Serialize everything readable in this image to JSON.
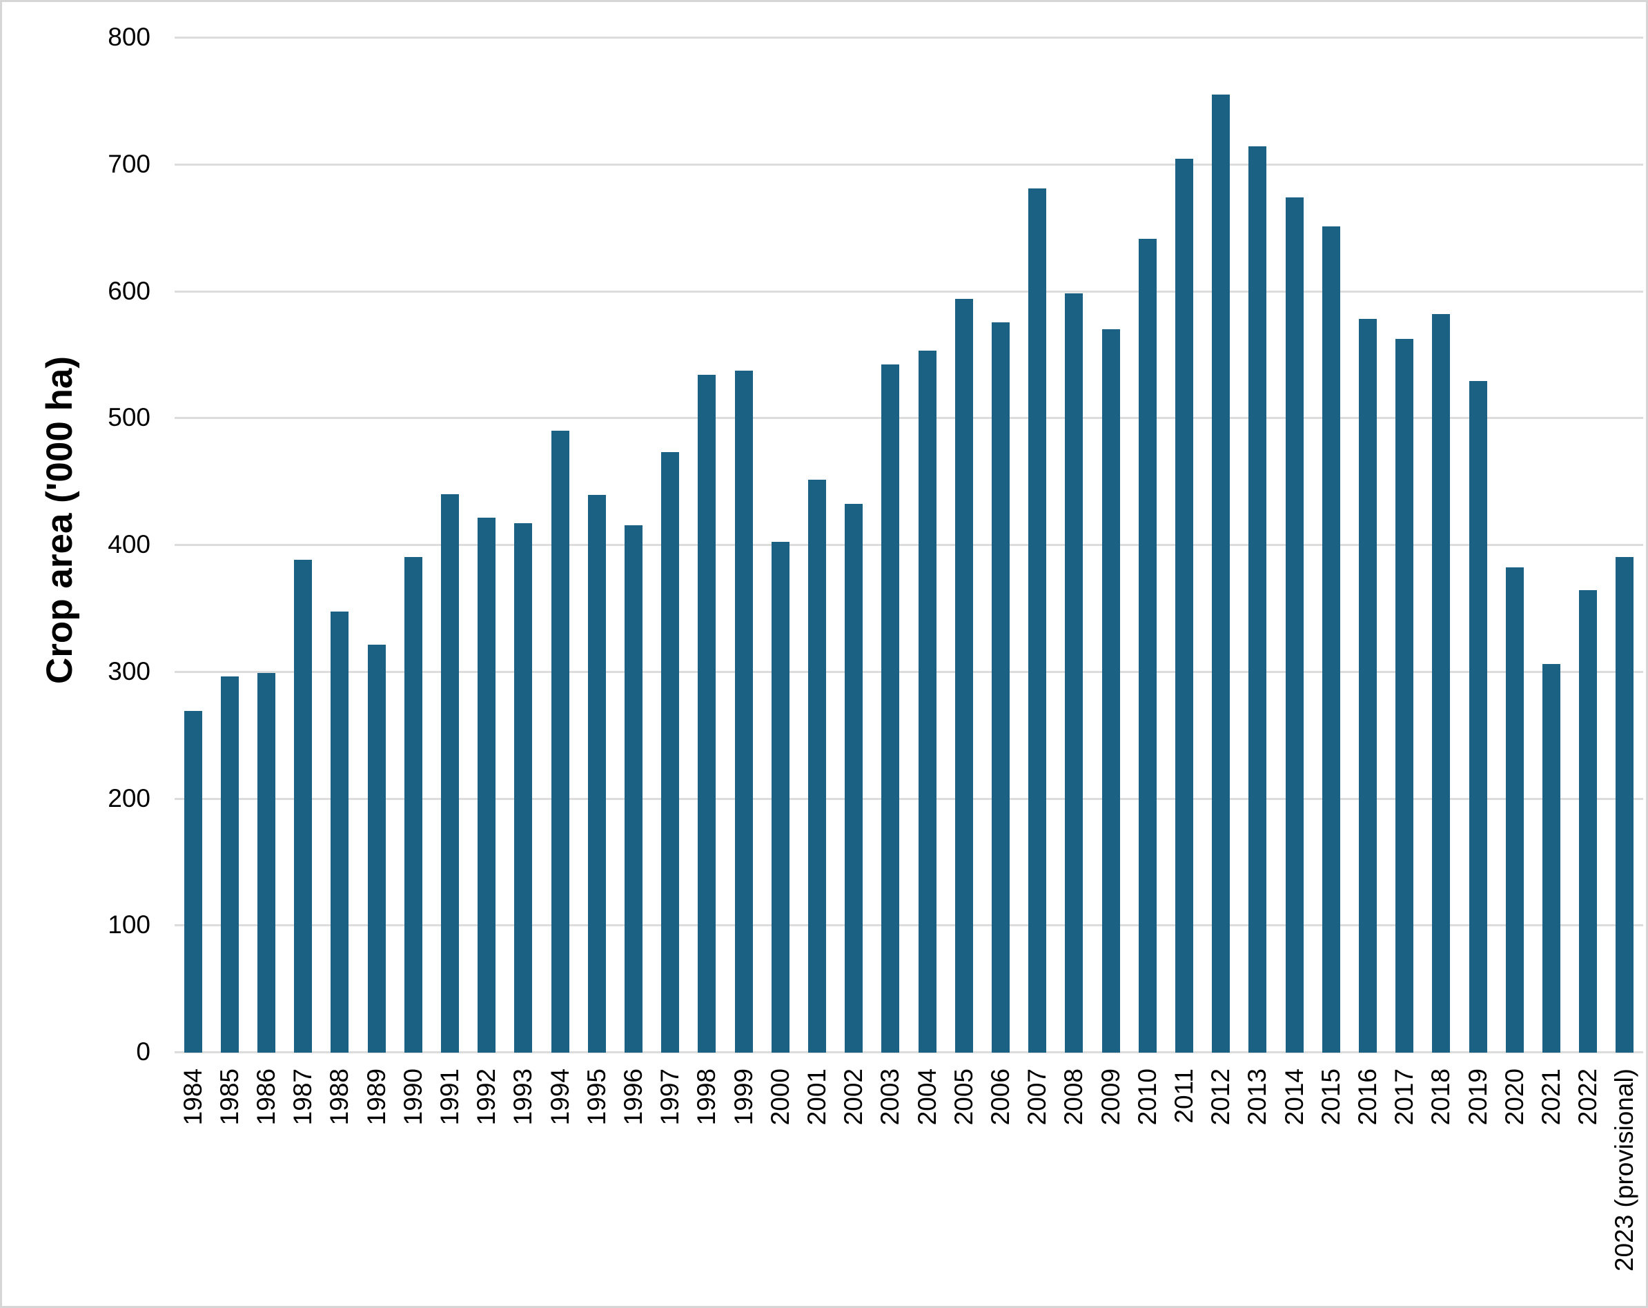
{
  "chart_data": {
    "type": "bar",
    "title": "",
    "xlabel": "",
    "ylabel": "Crop area ('000 ha)",
    "ylim": [
      0,
      800
    ],
    "y_ticks": [
      0,
      100,
      200,
      300,
      400,
      500,
      600,
      700,
      800
    ],
    "grid": "horizontal gridlines on",
    "legend_position": "none",
    "categories": [
      "1984",
      "1985",
      "1986",
      "1987",
      "1988",
      "1989",
      "1990",
      "1991",
      "1992",
      "1993",
      "1994",
      "1995",
      "1996",
      "1997",
      "1998",
      "1999",
      "2000",
      "2001",
      "2002",
      "2003",
      "2004",
      "2005",
      "2006",
      "2007",
      "2008",
      "2009",
      "2010",
      "2011",
      "2012",
      "2013",
      "2014",
      "2015",
      "2016",
      "2017",
      "2018",
      "2019",
      "2020",
      "2021",
      "2022",
      "2023 (provisional)"
    ],
    "values": [
      269,
      296,
      299,
      388,
      347,
      321,
      390,
      440,
      421,
      417,
      490,
      439,
      415,
      473,
      534,
      537,
      402,
      451,
      432,
      542,
      553,
      594,
      575,
      681,
      598,
      570,
      641,
      704,
      755,
      714,
      674,
      651,
      578,
      562,
      582,
      529,
      382,
      306,
      364,
      390
    ],
    "colors": {
      "bar": "#1A6183",
      "gridline": "#DCDCDC",
      "border": "#D6D6D6",
      "text": "#000000",
      "background": "#FFFFFF"
    }
  }
}
